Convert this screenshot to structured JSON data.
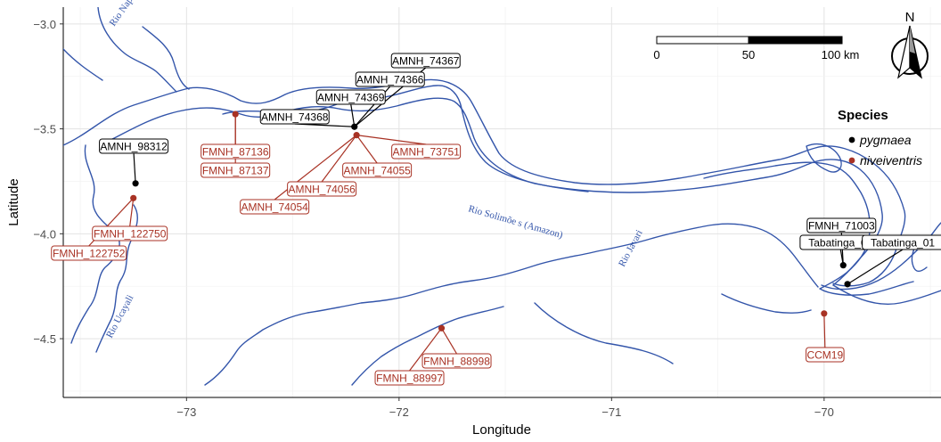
{
  "axes": {
    "xlabel": "Longitude",
    "ylabel": "Latitude",
    "xticks": [
      -73,
      -72,
      -71,
      -70
    ],
    "yticks": [
      -3.0,
      -3.5,
      -4.0,
      -4.5
    ],
    "xtick_labels": [
      "−73",
      "−72",
      "−71",
      "−70"
    ],
    "ytick_labels": [
      "−3.0",
      "−3.5",
      "−4.0",
      "−4.5"
    ],
    "xlim": [
      -73.58,
      -69.45
    ],
    "ylim": [
      -4.78,
      -2.92
    ],
    "grid": true
  },
  "legend": {
    "title": "Species",
    "position": "right",
    "items": [
      {
        "label": "pygmaea",
        "color": "#000000"
      },
      {
        "label": "niveiventris",
        "color": "#a83224"
      }
    ]
  },
  "scale_bar": {
    "labels": [
      "0",
      "50",
      "100 km"
    ]
  },
  "north_arrow": {
    "label": "N",
    "icon": "north-arrow-icon"
  },
  "rivers": [
    {
      "name": "Rio Napo"
    },
    {
      "name": "Rio Solimõe s (Amazon)"
    },
    {
      "name": "Rio Ucayali"
    },
    {
      "name": "Rio Javari"
    }
  ],
  "chart_data": {
    "type": "scatter",
    "xlabel": "Longitude",
    "ylabel": "Latitude",
    "series": [
      {
        "name": "pygmaea",
        "color": "#000000",
        "points": [
          {
            "x": -72.21,
            "y": -3.49,
            "labels": [
              "AMNH_74368",
              "AMNH_74369",
              "AMNH_74366",
              "AMNH_74367"
            ]
          },
          {
            "x": -73.24,
            "y": -3.76,
            "labels": [
              "AMNH_98312"
            ]
          },
          {
            "x": -69.91,
            "y": -4.15,
            "labels": [
              "FMNH_71003",
              "Tabatinga_02"
            ]
          },
          {
            "x": -69.89,
            "y": -4.24,
            "labels": [
              "Tabatinga_01"
            ]
          }
        ]
      },
      {
        "name": "niveiventris",
        "color": "#a83224",
        "points": [
          {
            "x": -72.77,
            "y": -3.43,
            "labels": [
              "FMNH_87136",
              "FMNH_87137"
            ]
          },
          {
            "x": -72.2,
            "y": -3.53,
            "labels": [
              "AMNH_73751",
              "AMNH_74055",
              "AMNH_74056",
              "AMNH_74054"
            ]
          },
          {
            "x": -73.25,
            "y": -3.83,
            "labels": [
              "FMNH_122750",
              "FMNH_122752"
            ]
          },
          {
            "x": -71.8,
            "y": -4.45,
            "labels": [
              "FMNH_88998",
              "FMNH_88997"
            ]
          },
          {
            "x": -70.0,
            "y": -4.38,
            "labels": [
              "CCM19"
            ]
          }
        ]
      }
    ]
  }
}
